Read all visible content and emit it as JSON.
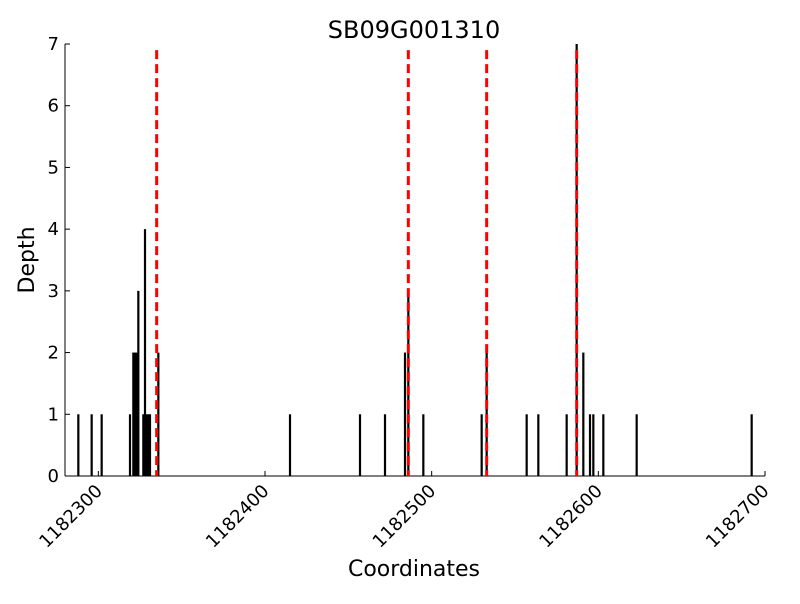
{
  "chart_data": {
    "type": "bar",
    "title": "SB09G001310",
    "xlabel": "Coordinates",
    "ylabel": "Depth",
    "xlim": [
      1182280,
      1182700
    ],
    "ylim": [
      0,
      7
    ],
    "xticks": [
      1182300,
      1182400,
      1182500,
      1182600,
      1182700
    ],
    "yticks": [
      0,
      1,
      2,
      3,
      4,
      5,
      6,
      7
    ],
    "grid": false,
    "bar_color": "#000000",
    "marker_color": "#ff0000",
    "markers": [
      1182335,
      1182486,
      1182533,
      1182587
    ],
    "x": [
      1182288,
      1182296,
      1182302,
      1182319,
      1182321,
      1182322,
      1182323,
      1182324,
      1182327,
      1182328,
      1182329,
      1182330,
      1182331,
      1182336,
      1182415,
      1182457,
      1182472,
      1182484,
      1182486,
      1182495,
      1182530,
      1182533,
      1182557,
      1182564,
      1182581,
      1182587,
      1182591,
      1182595,
      1182597,
      1182603,
      1182623,
      1182692
    ],
    "values": [
      1,
      1,
      1,
      1,
      2,
      2,
      2,
      3,
      1,
      4,
      1,
      1,
      1,
      2,
      1,
      1,
      1,
      2,
      3,
      1,
      1,
      2,
      1,
      1,
      1,
      7,
      2,
      1,
      1,
      1,
      1,
      1
    ]
  }
}
